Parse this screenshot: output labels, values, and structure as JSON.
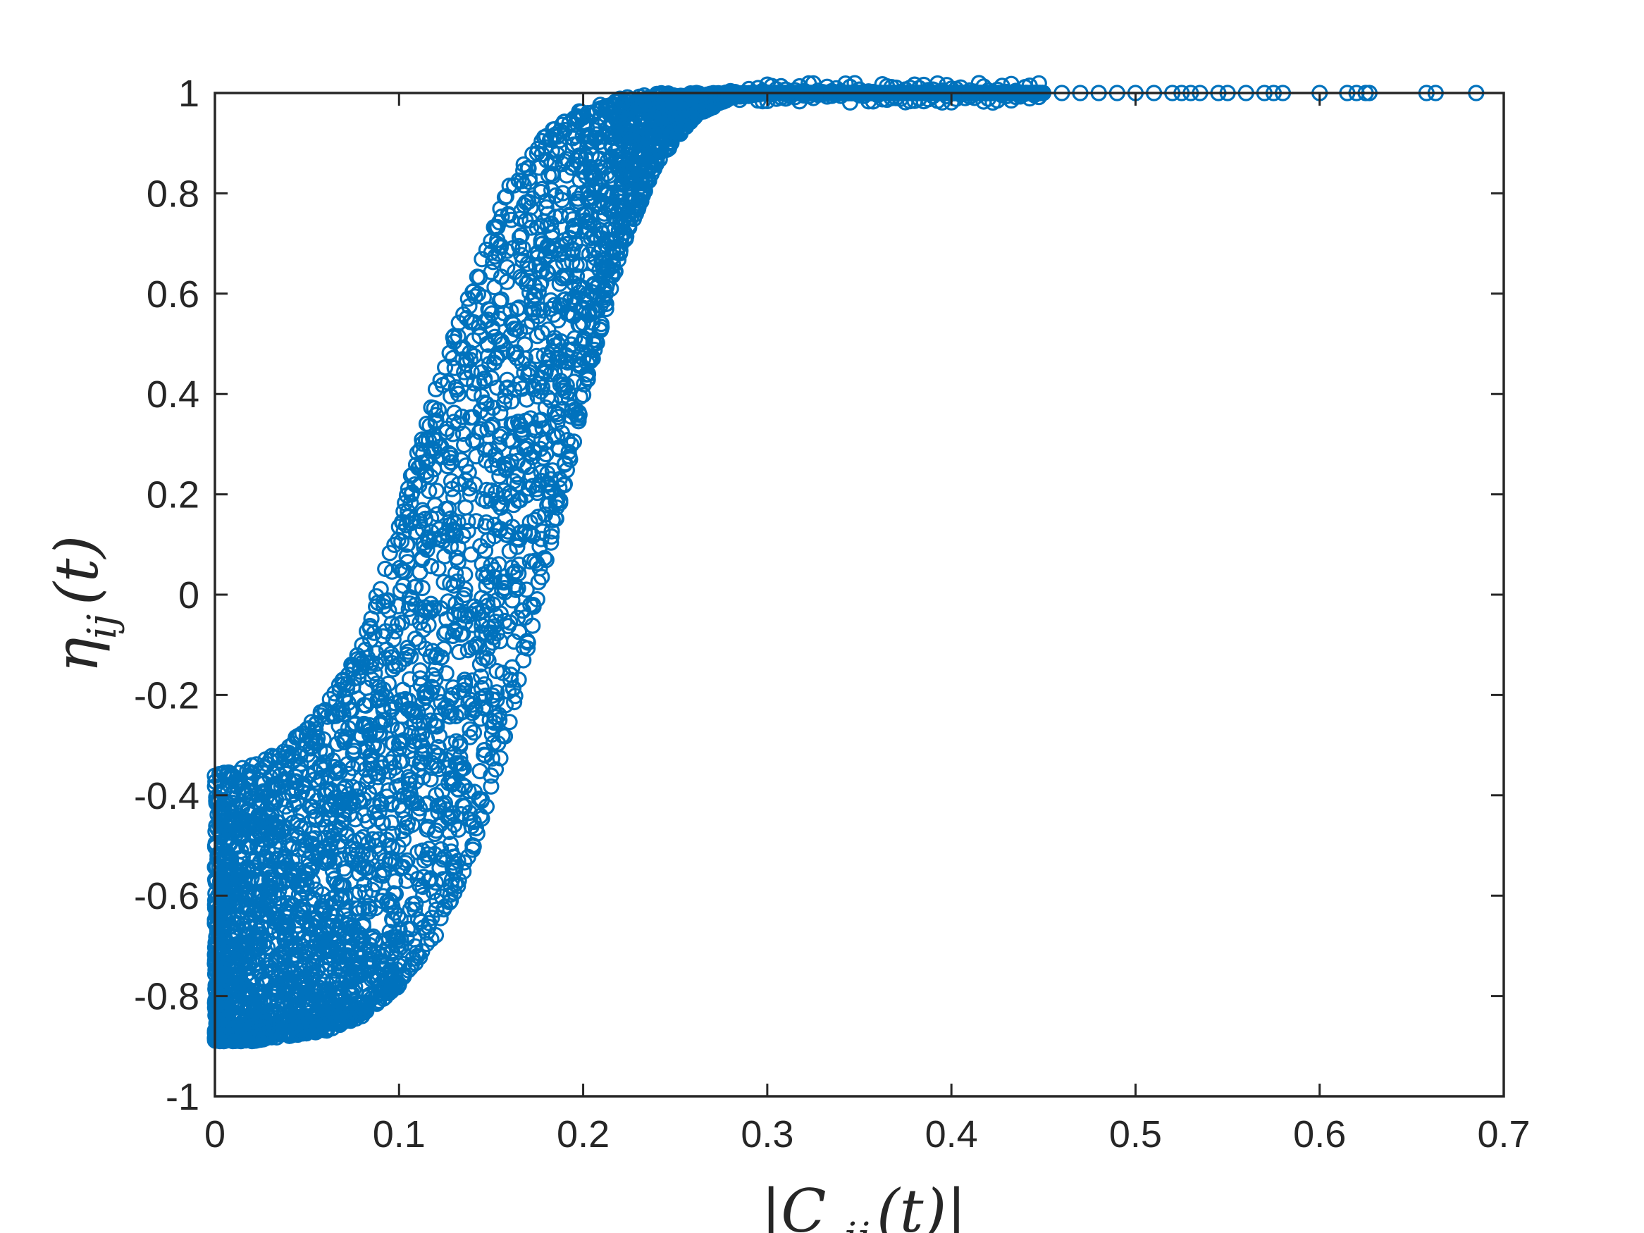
{
  "chart_data": {
    "type": "scatter",
    "title": "",
    "xlabel": "|C_ij(t)|",
    "ylabel": "η_ij(t)",
    "xlim": [
      0,
      0.7
    ],
    "ylim": [
      -1,
      1
    ],
    "x_ticks": [
      "0",
      "0.1",
      "0.2",
      "0.3",
      "0.4",
      "0.5",
      "0.6",
      "0.7"
    ],
    "y_ticks": [
      "-1",
      "-0.8",
      "-0.6",
      "-0.4",
      "-0.2",
      "0",
      "0.2",
      "0.4",
      "0.6",
      "0.8",
      "1"
    ],
    "grid": false,
    "legend": "none",
    "marker": "open-circle",
    "colors": {
      "series": "#0072BD",
      "axis": "#262626",
      "background": "#ffffff"
    },
    "series": [
      {
        "envelope": [
          {
            "x": 0.0,
            "y_min": -0.89,
            "y_max": -0.36
          },
          {
            "x": 0.02,
            "y_min": -0.89,
            "y_max": -0.34
          },
          {
            "x": 0.04,
            "y_min": -0.88,
            "y_max": -0.3
          },
          {
            "x": 0.06,
            "y_min": -0.87,
            "y_max": -0.22
          },
          {
            "x": 0.08,
            "y_min": -0.84,
            "y_max": -0.1
          },
          {
            "x": 0.1,
            "y_min": -0.78,
            "y_max": 0.15
          },
          {
            "x": 0.12,
            "y_min": -0.68,
            "y_max": 0.42
          },
          {
            "x": 0.14,
            "y_min": -0.52,
            "y_max": 0.62
          },
          {
            "x": 0.16,
            "y_min": -0.27,
            "y_max": 0.82
          },
          {
            "x": 0.18,
            "y_min": 0.06,
            "y_max": 0.92
          },
          {
            "x": 0.2,
            "y_min": 0.38,
            "y_max": 0.97
          },
          {
            "x": 0.22,
            "y_min": 0.68,
            "y_max": 0.99
          },
          {
            "x": 0.24,
            "y_min": 0.86,
            "y_max": 1.0
          },
          {
            "x": 0.26,
            "y_min": 0.95,
            "y_max": 1.0
          },
          {
            "x": 0.28,
            "y_min": 0.99,
            "y_max": 1.0
          },
          {
            "x": 0.3,
            "y_min": 1.0,
            "y_max": 1.0
          },
          {
            "x": 0.45,
            "y_min": 1.0,
            "y_max": 1.0
          }
        ],
        "sparse_points": [
          [
            0.46,
            1.0
          ],
          [
            0.47,
            1.0
          ],
          [
            0.48,
            1.0
          ],
          [
            0.49,
            1.0
          ],
          [
            0.5,
            1.0
          ],
          [
            0.51,
            1.0
          ],
          [
            0.52,
            1.0
          ],
          [
            0.525,
            1.0
          ],
          [
            0.53,
            1.0
          ],
          [
            0.535,
            1.0
          ],
          [
            0.545,
            1.0
          ],
          [
            0.55,
            1.0
          ],
          [
            0.56,
            1.0
          ],
          [
            0.57,
            1.0
          ],
          [
            0.575,
            1.0
          ],
          [
            0.58,
            1.0
          ],
          [
            0.6,
            1.0
          ],
          [
            0.615,
            1.0
          ],
          [
            0.62,
            1.0
          ],
          [
            0.625,
            1.0
          ],
          [
            0.627,
            1.0
          ],
          [
            0.658,
            1.0
          ],
          [
            0.663,
            1.0
          ],
          [
            0.685,
            1.0
          ]
        ]
      }
    ]
  }
}
